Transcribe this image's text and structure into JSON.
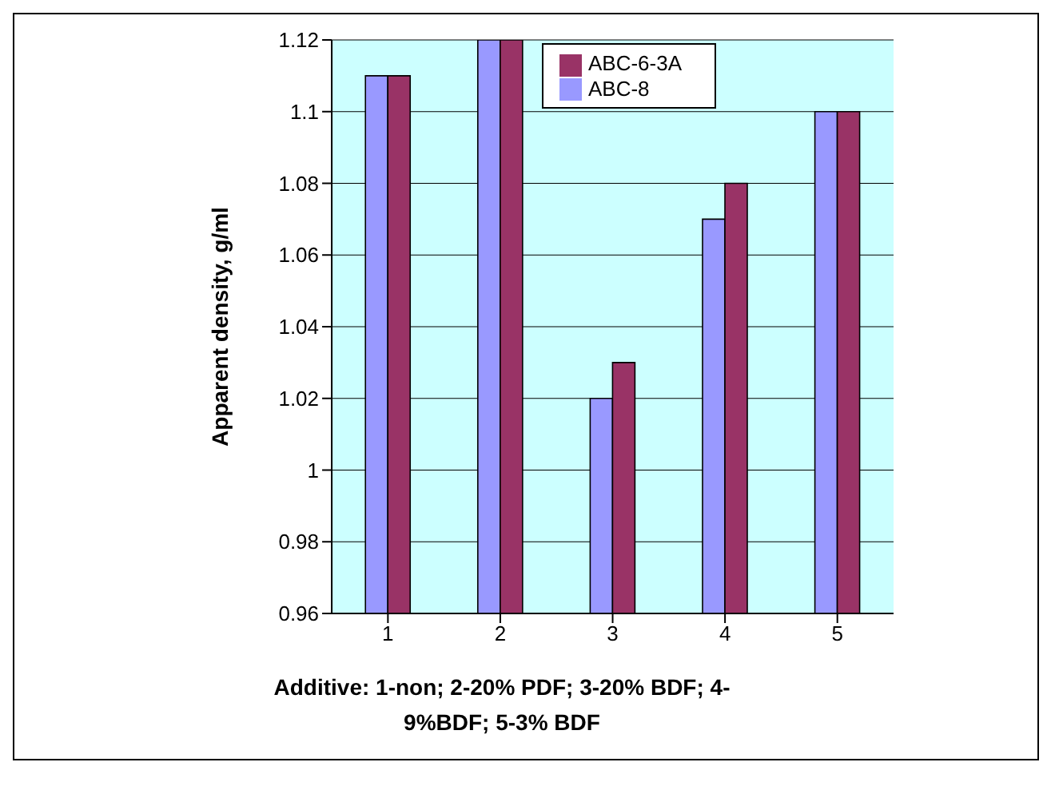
{
  "chart_data": {
    "type": "bar",
    "categories": [
      "1",
      "2",
      "3",
      "4",
      "5"
    ],
    "series": [
      {
        "name": "ABC-8",
        "color": "#9999ff",
        "values": [
          1.11,
          1.12,
          1.02,
          1.07,
          1.1
        ]
      },
      {
        "name": "ABC-6-3A",
        "color": "#993366",
        "values": [
          1.11,
          1.12,
          1.03,
          1.08,
          1.1
        ]
      }
    ],
    "xlabel": "Additive: 1-non; 2-20% PDF; 3-20% BDF; 4-9%BDF; 5-3% BDF",
    "ylabel": "Apparent density, g/ml",
    "ylim": [
      0.96,
      1.12
    ],
    "yticks": [
      0.96,
      0.98,
      1,
      1.02,
      1.04,
      1.06,
      1.08,
      1.1,
      1.12
    ],
    "grid": "y",
    "legend": "top"
  }
}
